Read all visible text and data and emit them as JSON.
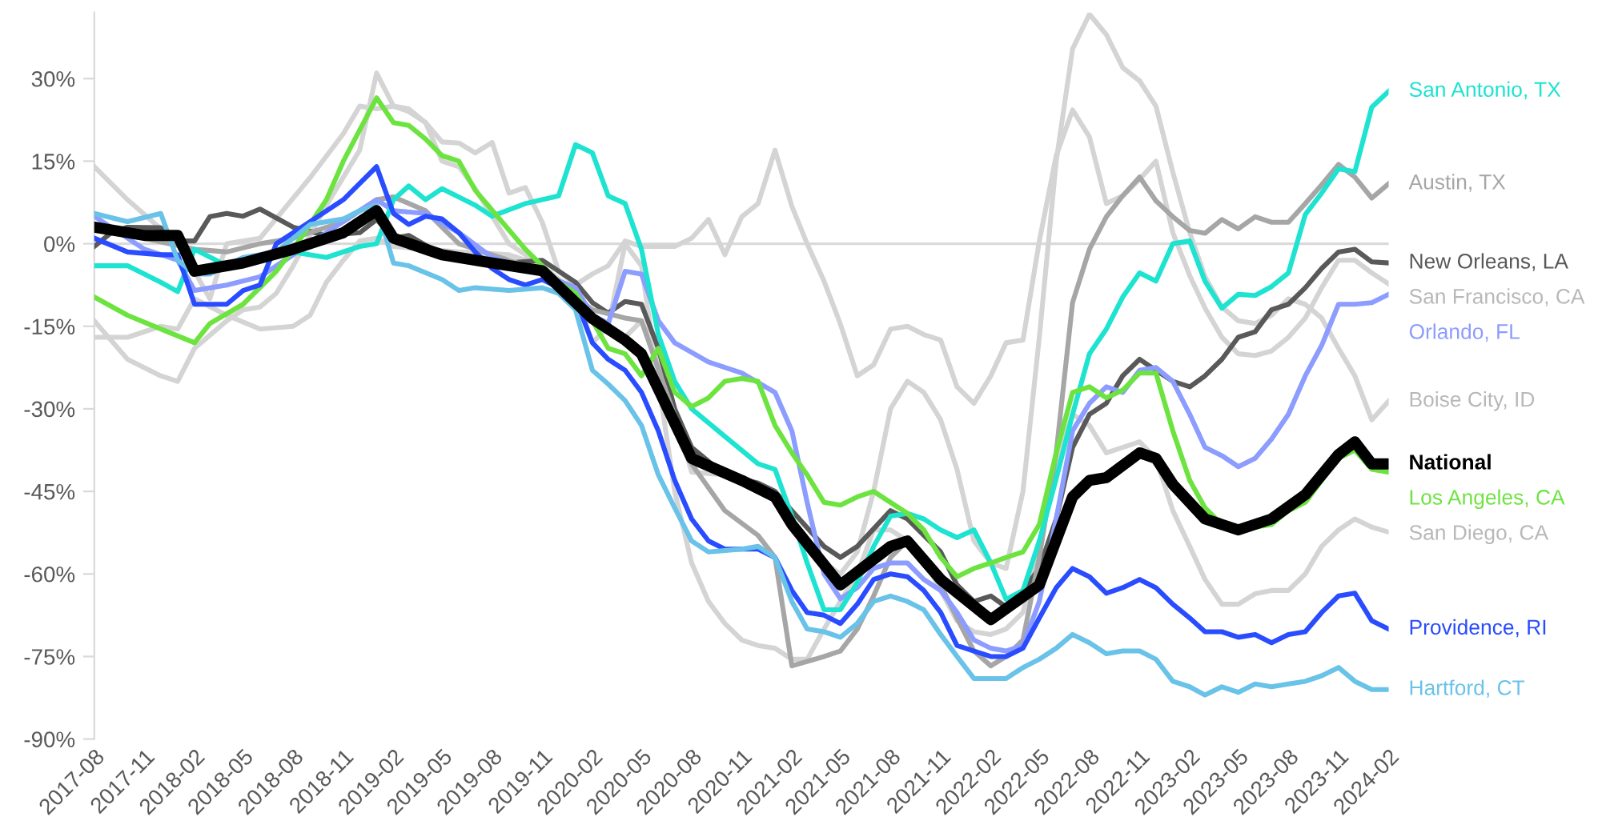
{
  "chart_data": {
    "type": "line",
    "xlim": [
      "2017-08",
      "2024-02"
    ],
    "xticks": [
      "2017-08",
      "2017-11",
      "2018-02",
      "2018-05",
      "2018-08",
      "2018-11",
      "2019-02",
      "2019-05",
      "2019-08",
      "2019-11",
      "2020-02",
      "2020-05",
      "2020-08",
      "2020-11",
      "2021-02",
      "2021-05",
      "2021-08",
      "2021-11",
      "2022-02",
      "2022-05",
      "2022-08",
      "2022-11",
      "2023-02",
      "2023-05",
      "2023-08",
      "2023-11",
      "2024-02"
    ],
    "ylim": [
      -90,
      42
    ],
    "yticks": [
      {
        "value": -90,
        "label": "-90%"
      },
      {
        "value": -75,
        "label": "-75%"
      },
      {
        "value": -60,
        "label": "-60%"
      },
      {
        "value": -45,
        "label": "-45%"
      },
      {
        "value": -30,
        "label": "-30%"
      },
      {
        "value": -15,
        "label": "-15%"
      },
      {
        "value": 0,
        "label": "0%"
      },
      {
        "value": 15,
        "label": "15%"
      },
      {
        "value": 30,
        "label": "30%"
      }
    ],
    "ref_lines": [
      {
        "axis": "y",
        "value": 0,
        "color": "#d9d9d9"
      }
    ],
    "grid": false,
    "legend": false,
    "marker": "none",
    "line_style": "solid",
    "series": [
      {
        "name": "San Francisco, CA",
        "color": "#d4d4d4",
        "x": [
          "2017-08",
          "2017-10",
          "2018-01",
          "2018-02",
          "2018-03",
          "2018-04",
          "2018-06",
          "2018-09",
          "2018-11",
          "2018-12",
          "2019-01",
          "2019-02",
          "2019-03",
          "2019-04",
          "2019-05",
          "2019-06",
          "2019-07",
          "2019-08",
          "2019-09",
          "2019-10",
          "2019-11",
          "2019-12",
          "2020-01",
          "2020-02",
          "2020-03",
          "2020-04",
          "2020-05",
          "2020-07",
          "2020-08",
          "2020-09",
          "2020-10",
          "2020-11",
          "2020-12",
          "2021-01",
          "2021-02",
          "2021-03",
          "2021-04",
          "2021-05",
          "2021-06",
          "2021-07",
          "2021-08",
          "2021-09",
          "2021-10",
          "2021-11",
          "2021-12",
          "2022-01",
          "2022-02",
          "2022-03",
          "2022-04",
          "2022-05",
          "2022-06",
          "2022-07",
          "2022-08",
          "2022-09",
          "2022-10",
          "2022-11",
          "2022-12",
          "2023-01",
          "2023-02",
          "2023-03",
          "2023-04",
          "2023-05",
          "2023-06",
          "2023-07",
          "2023-08",
          "2023-09",
          "2023-10",
          "2023-11",
          "2023-12",
          "2024-01",
          "2024-02"
        ],
        "values": [
          14,
          8,
          0,
          -5,
          -10,
          0,
          1,
          12,
          20,
          25,
          24.5,
          25,
          24.5,
          22,
          18.5,
          18.3,
          16.5,
          18.4,
          9.2,
          10.2,
          3.9,
          -5,
          -7.5,
          -5.5,
          -4,
          0.5,
          -0.5,
          -0.5,
          1,
          4.4,
          -2,
          4.9,
          7.3,
          17,
          6.8,
          0,
          -6.8,
          -14.6,
          -24,
          -22,
          -15.5,
          -15,
          -16.5,
          -17.5,
          -26,
          -29,
          -24,
          -18,
          -17.5,
          0.5,
          16,
          24.3,
          19.4,
          7.3,
          8.7,
          11.7,
          15,
          2,
          -5.8,
          -11.7,
          -17,
          -20,
          -20.3,
          -19.5,
          -17,
          -13.5,
          -8,
          -3,
          -3,
          -5.3,
          -7.3
        ]
      },
      {
        "name": "Boise City, ID",
        "color": "#d4d4d4",
        "x": [
          "2017-08",
          "2017-10",
          "2017-12",
          "2018-01",
          "2018-02",
          "2018-04",
          "2018-05",
          "2018-06",
          "2018-07",
          "2018-08",
          "2018-10",
          "2018-12",
          "2019-01",
          "2019-02",
          "2019-03",
          "2019-04",
          "2019-05",
          "2019-06",
          "2019-07",
          "2019-08",
          "2019-09",
          "2019-10",
          "2019-12",
          "2020-02",
          "2020-04",
          "2020-05",
          "2020-06",
          "2020-08",
          "2020-10",
          "2021-01",
          "2021-03",
          "2021-04",
          "2021-05",
          "2021-06",
          "2021-07",
          "2021-08",
          "2021-09",
          "2021-10",
          "2021-11",
          "2021-12",
          "2022-01",
          "2022-02",
          "2022-03",
          "2022-04",
          "2022-05",
          "2022-06",
          "2022-07",
          "2022-08",
          "2022-09",
          "2022-10",
          "2022-11",
          "2022-12",
          "2023-01",
          "2023-02",
          "2023-03",
          "2023-04",
          "2023-05",
          "2023-06",
          "2023-07",
          "2023-08",
          "2023-09",
          "2023-10",
          "2023-11",
          "2023-12",
          "2024-01",
          "2024-02"
        ],
        "values": [
          -14,
          -21,
          -24,
          -25,
          -19,
          -14,
          -12,
          -11.5,
          -9,
          -4,
          7,
          17,
          31,
          25,
          24,
          22,
          15,
          14,
          10,
          5,
          0,
          -2,
          -7,
          -13,
          -17,
          -14,
          -20,
          -41.5,
          -42,
          -45,
          -55,
          -58,
          -60,
          -56,
          -45,
          -30,
          -25,
          -27,
          -32,
          -41,
          -54,
          -58,
          -59,
          -45,
          -17,
          15,
          35.4,
          41.7,
          38,
          32,
          29.6,
          25,
          13,
          2,
          -6,
          -11.5,
          -14,
          -14.5,
          -13,
          -10,
          -11,
          -13.5,
          -19,
          -24,
          -32,
          -28.6
        ]
      },
      {
        "name": "San Diego, CA",
        "color": "#d4d4d4",
        "x": [
          "2017-08",
          "2017-10",
          "2017-12",
          "2018-01",
          "2018-02",
          "2018-04",
          "2018-06",
          "2018-08",
          "2018-09",
          "2018-10",
          "2018-11",
          "2018-12",
          "2019-01",
          "2019-02",
          "2019-06",
          "2019-09",
          "2019-11",
          "2020-01",
          "2020-02",
          "2020-03",
          "2020-04",
          "2020-05",
          "2020-06",
          "2020-07",
          "2020-08",
          "2020-09",
          "2020-10",
          "2020-11",
          "2020-12",
          "2021-01",
          "2021-02",
          "2021-03",
          "2021-04",
          "2021-05",
          "2021-06",
          "2021-07",
          "2021-08",
          "2021-09",
          "2021-10",
          "2021-11",
          "2021-12",
          "2022-01",
          "2022-02",
          "2022-03",
          "2022-04",
          "2022-05",
          "2022-06",
          "2022-07",
          "2022-08",
          "2022-09",
          "2022-10",
          "2022-11",
          "2022-12",
          "2023-01",
          "2023-02",
          "2023-03",
          "2023-04",
          "2023-05",
          "2023-06",
          "2023-07",
          "2023-08",
          "2023-09",
          "2023-10",
          "2023-11",
          "2023-12",
          "2024-01",
          "2024-02"
        ],
        "values": [
          -17,
          -17,
          -15,
          -15.5,
          -10,
          -13,
          -15.5,
          -15,
          -13,
          -7,
          -3,
          0.5,
          1,
          -0.5,
          -1.5,
          -2,
          -4,
          -9,
          -18,
          -15,
          0,
          -4,
          -25,
          -45,
          -58,
          -65,
          -69,
          -72,
          -73,
          -73.5,
          -75.5,
          -75.5,
          -70,
          -65,
          -60,
          -52,
          -52,
          -54,
          -57,
          -63,
          -68.5,
          -70.5,
          -71,
          -70,
          -67,
          -55,
          -40,
          -31,
          -33,
          -38,
          -37,
          -36,
          -39,
          -48.5,
          -55,
          -61,
          -65.5,
          -65.5,
          -63.6,
          -63,
          -63,
          -60,
          -55,
          -52,
          -50,
          -51.5,
          -52.4
        ]
      },
      {
        "name": "New Orleans, LA",
        "color": "#595959",
        "x": [
          "2017-08",
          "2017-09",
          "2017-10",
          "2017-12",
          "2018-01",
          "2018-02",
          "2018-03",
          "2018-04",
          "2018-05",
          "2018-06",
          "2018-08",
          "2018-10",
          "2018-12",
          "2019-01",
          "2019-02",
          "2019-03",
          "2019-05",
          "2019-07",
          "2019-09",
          "2019-11",
          "2020-01",
          "2020-02",
          "2020-03",
          "2020-04",
          "2020-05",
          "2020-06",
          "2020-07",
          "2020-08",
          "2020-10",
          "2020-12",
          "2021-01",
          "2021-02",
          "2021-04",
          "2021-05",
          "2021-06",
          "2021-08",
          "2021-09",
          "2021-11",
          "2021-12",
          "2022-01",
          "2022-02",
          "2022-03",
          "2022-04",
          "2022-05",
          "2022-06",
          "2022-07",
          "2022-08",
          "2022-09",
          "2022-10",
          "2022-11",
          "2022-12",
          "2023-01",
          "2023-02",
          "2023-03",
          "2023-04",
          "2023-05",
          "2023-06",
          "2023-07",
          "2023-08",
          "2023-09",
          "2023-10",
          "2023-11",
          "2023-12",
          "2024-01",
          "2024-02"
        ],
        "values": [
          -0.5,
          2,
          3,
          2.9,
          0.5,
          0.5,
          4.9,
          5.5,
          5,
          6.3,
          3,
          1.5,
          2,
          4.4,
          1,
          1.5,
          -2,
          -3.5,
          -3.5,
          -3,
          -7,
          -10.7,
          -12.6,
          -10.5,
          -11,
          -19,
          -30,
          -37,
          -42,
          -43.5,
          -45,
          -48.5,
          -55,
          -57,
          -55,
          -48.5,
          -50,
          -56,
          -62,
          -65,
          -64,
          -66,
          -63,
          -59,
          -50,
          -37,
          -31,
          -29,
          -24,
          -21,
          -23,
          -25,
          -26,
          -24,
          -21,
          -17,
          -16,
          -12,
          -11,
          -8,
          -4.5,
          -1.5,
          -1,
          -3.3,
          -3.5
        ]
      },
      {
        "name": "Austin, TX",
        "color": "#a6a6a6",
        "x": [
          "2017-08",
          "2017-11",
          "2018-02",
          "2018-04",
          "2018-06",
          "2018-08",
          "2018-11",
          "2019-01",
          "2019-02",
          "2019-04",
          "2019-05",
          "2019-06",
          "2019-08",
          "2019-11",
          "2020-02",
          "2020-04",
          "2020-05",
          "2020-08",
          "2020-10",
          "2020-12",
          "2021-01",
          "2021-02",
          "2021-04",
          "2021-05",
          "2021-06",
          "2021-07",
          "2021-08",
          "2021-09",
          "2021-10",
          "2021-11",
          "2021-12",
          "2022-01",
          "2022-02",
          "2022-03",
          "2022-04",
          "2022-05",
          "2022-06",
          "2022-07",
          "2022-08",
          "2022-09",
          "2022-10",
          "2022-11",
          "2022-12",
          "2023-01",
          "2023-02",
          "2023-03",
          "2023-04",
          "2023-05",
          "2023-06",
          "2023-07",
          "2023-08",
          "2023-09",
          "2023-10",
          "2023-11",
          "2023-12",
          "2024-01",
          "2024-02"
        ],
        "values": [
          3,
          1,
          -1,
          -1.5,
          0,
          1,
          4,
          8,
          8.5,
          6,
          3,
          0,
          -2,
          -5,
          -12,
          -13.5,
          -14,
          -40,
          -48.5,
          -53,
          -57,
          -76.7,
          -75,
          -74,
          -70,
          -64,
          -57,
          -54,
          -57,
          -62,
          -68,
          -74,
          -76.7,
          -75,
          -72,
          -57,
          -38,
          -10.7,
          -1,
          4.9,
          8.7,
          12.1,
          7.8,
          4.9,
          2.4,
          1.9,
          4.4,
          2.7,
          4.9,
          3.9,
          3.9,
          7.3,
          10.7,
          14.4,
          12.1,
          8.3,
          10.9
        ]
      },
      {
        "name": "Orlando, FL",
        "color": "#8c9cff",
        "x": [
          "2017-08",
          "2017-11",
          "2018-01",
          "2018-02",
          "2018-04",
          "2018-06",
          "2018-08",
          "2018-10",
          "2018-12",
          "2019-01",
          "2019-02",
          "2019-04",
          "2019-06",
          "2019-08",
          "2019-11",
          "2020-01",
          "2020-02",
          "2020-03",
          "2020-04",
          "2020-05",
          "2020-06",
          "2020-07",
          "2020-09",
          "2020-11",
          "2021-01",
          "2021-02",
          "2021-03",
          "2021-04",
          "2021-05",
          "2021-06",
          "2021-07",
          "2021-08",
          "2021-09",
          "2021-10",
          "2021-11",
          "2021-12",
          "2022-01",
          "2022-02",
          "2022-03",
          "2022-04",
          "2022-05",
          "2022-06",
          "2022-07",
          "2022-08",
          "2022-09",
          "2022-10",
          "2022-11",
          "2022-12",
          "2023-01",
          "2023-02",
          "2023-03",
          "2023-04",
          "2023-05",
          "2023-06",
          "2023-07",
          "2023-08",
          "2023-09",
          "2023-10",
          "2023-11",
          "2023-12",
          "2024-01",
          "2024-02"
        ],
        "values": [
          5,
          -1,
          -3,
          -8.5,
          -7.5,
          -6,
          -2,
          2,
          6,
          8,
          6,
          5.5,
          2,
          -2.5,
          -5.5,
          -8,
          -13,
          -14.5,
          -5,
          -5.5,
          -14,
          -18,
          -21.5,
          -23.5,
          -27,
          -34,
          -47,
          -60,
          -64.5,
          -62.5,
          -59,
          -58,
          -58,
          -61,
          -63,
          -67,
          -72,
          -73.5,
          -74,
          -73,
          -65,
          -50,
          -34,
          -29,
          -26,
          -27,
          -23,
          -22.5,
          -25,
          -31,
          -37,
          -38.5,
          -40.5,
          -39,
          -35.5,
          -31,
          -24,
          -18.5,
          -11,
          -11,
          -10.7,
          -9.2
        ]
      },
      {
        "name": "San Antonio, TX",
        "color": "#1de3d0",
        "x": [
          "2017-08",
          "2017-10",
          "2017-12",
          "2018-01",
          "2018-02",
          "2018-04",
          "2018-06",
          "2018-08",
          "2018-10",
          "2018-12",
          "2019-01",
          "2019-02",
          "2019-03",
          "2019-04",
          "2019-05",
          "2019-07",
          "2019-08",
          "2019-10",
          "2019-12",
          "2020-01",
          "2020-02",
          "2020-03",
          "2020-04",
          "2020-05",
          "2020-06",
          "2020-07",
          "2020-08",
          "2020-10",
          "2020-12",
          "2021-01",
          "2021-02",
          "2021-03",
          "2021-04",
          "2021-05",
          "2021-06",
          "2021-07",
          "2021-08",
          "2021-09",
          "2021-10",
          "2021-11",
          "2021-12",
          "2022-01",
          "2022-02",
          "2022-03",
          "2022-04",
          "2022-05",
          "2022-06",
          "2022-07",
          "2022-08",
          "2022-09",
          "2022-10",
          "2022-11",
          "2022-12",
          "2023-01",
          "2023-02",
          "2023-03",
          "2023-04",
          "2023-05",
          "2023-06",
          "2023-07",
          "2023-08",
          "2023-09",
          "2023-10",
          "2023-11",
          "2023-12",
          "2024-01",
          "2024-02"
        ],
        "values": [
          -4,
          -4,
          -7,
          -8.7,
          -1,
          -4,
          -3,
          -1.5,
          -2.5,
          -0.5,
          0,
          8,
          10.5,
          8,
          10,
          7,
          5,
          7.3,
          8.7,
          18,
          16.5,
          8.7,
          7.3,
          -1,
          -16.5,
          -25,
          -30,
          -35,
          -40,
          -41,
          -49.5,
          -58,
          -66.5,
          -66.5,
          -61.6,
          -55,
          -49.5,
          -49,
          -50,
          -52,
          -53.4,
          -52,
          -58,
          -64.6,
          -63,
          -54,
          -42.7,
          -31,
          -20,
          -15.5,
          -9.7,
          -5.3,
          -6.8,
          0,
          0.5,
          -6.8,
          -11.7,
          -9.2,
          -9.4,
          -7.8,
          -5.3,
          5.3,
          9.2,
          13.6,
          13.1,
          24.8,
          27.7
        ]
      },
      {
        "name": "Los Angeles, CA",
        "color": "#6de340",
        "x": [
          "2017-08",
          "2017-10",
          "2017-12",
          "2018-02",
          "2018-03",
          "2018-05",
          "2018-07",
          "2018-08",
          "2018-10",
          "2018-11",
          "2019-01",
          "2019-02",
          "2019-03",
          "2019-04",
          "2019-05",
          "2019-06",
          "2019-07",
          "2019-10",
          "2019-12",
          "2020-01",
          "2020-02",
          "2020-03",
          "2020-04",
          "2020-05",
          "2020-06",
          "2020-07",
          "2020-08",
          "2020-09",
          "2020-10",
          "2020-11",
          "2020-12",
          "2021-01",
          "2021-02",
          "2021-03",
          "2021-04",
          "2021-05",
          "2021-06",
          "2021-07",
          "2021-08",
          "2021-09",
          "2021-10",
          "2021-11",
          "2021-12",
          "2022-01",
          "2022-02",
          "2022-03",
          "2022-04",
          "2022-05",
          "2022-06",
          "2022-07",
          "2022-08",
          "2022-09",
          "2022-10",
          "2022-11",
          "2022-12",
          "2023-01",
          "2023-02",
          "2023-03",
          "2023-04",
          "2023-05",
          "2023-06",
          "2023-07",
          "2023-08",
          "2023-09",
          "2023-10",
          "2023-11",
          "2023-12",
          "2024-01",
          "2024-02"
        ],
        "values": [
          -9.7,
          -13,
          -15.5,
          -18,
          -14.5,
          -11,
          -5,
          -1,
          8,
          15,
          26.5,
          22,
          21.5,
          19,
          16,
          15,
          9.7,
          -1,
          -7,
          -9,
          -14,
          -19,
          -20,
          -24,
          -19,
          -27,
          -29.6,
          -28,
          -25,
          -24.5,
          -25,
          -33,
          -38,
          -42,
          -47,
          -47.5,
          -46,
          -45,
          -47,
          -49,
          -52,
          -57,
          -60.5,
          -59,
          -58,
          -57,
          -56,
          -51,
          -38,
          -27,
          -26,
          -28,
          -26.6,
          -23.5,
          -23.5,
          -34,
          -43,
          -48,
          -51,
          -52,
          -51.5,
          -51,
          -48.5,
          -47,
          -43,
          -39,
          -37.5,
          -41,
          -41.5
        ]
      },
      {
        "name": "Providence, RI",
        "color": "#2a4cff",
        "x": [
          "2017-08",
          "2017-10",
          "2017-12",
          "2018-01",
          "2018-02",
          "2018-04",
          "2018-05",
          "2018-06",
          "2018-07",
          "2018-09",
          "2018-11",
          "2019-01",
          "2019-02",
          "2019-03",
          "2019-04",
          "2019-05",
          "2019-06",
          "2019-07",
          "2019-08",
          "2019-09",
          "2019-10",
          "2019-11",
          "2019-12",
          "2020-01",
          "2020-02",
          "2020-03",
          "2020-04",
          "2020-05",
          "2020-06",
          "2020-07",
          "2020-08",
          "2020-09",
          "2020-10",
          "2020-12",
          "2021-01",
          "2021-02",
          "2021-03",
          "2021-04",
          "2021-05",
          "2021-06",
          "2021-07",
          "2021-08",
          "2021-09",
          "2021-10",
          "2021-11",
          "2021-12",
          "2022-01",
          "2022-02",
          "2022-03",
          "2022-04",
          "2022-05",
          "2022-06",
          "2022-07",
          "2022-08",
          "2022-09",
          "2022-10",
          "2022-11",
          "2022-12",
          "2023-01",
          "2023-02",
          "2023-03",
          "2023-04",
          "2023-05",
          "2023-06",
          "2023-07",
          "2023-08",
          "2023-09",
          "2023-10",
          "2023-11",
          "2023-12",
          "2024-01",
          "2024-02"
        ],
        "values": [
          1,
          -1.5,
          -2,
          -2,
          -11,
          -11,
          -8.5,
          -7.5,
          0,
          4,
          8,
          14,
          5.5,
          3.5,
          5,
          4.5,
          2,
          -1.5,
          -4.5,
          -6.5,
          -7.5,
          -6.5,
          -8,
          -10,
          -18,
          -21,
          -23,
          -27,
          -34,
          -43,
          -50,
          -54,
          -55.5,
          -55.5,
          -57,
          -63,
          -67,
          -67.5,
          -69,
          -65.5,
          -61,
          -60,
          -60.5,
          -63,
          -67,
          -73,
          -74,
          -75,
          -75,
          -73.5,
          -68,
          -62.5,
          -59,
          -60.5,
          -63.5,
          -62.5,
          -61,
          -62.5,
          -65.5,
          -68,
          -70.5,
          -70.5,
          -71.5,
          -71,
          -72.5,
          -71,
          -70.5,
          -67,
          -64,
          -63.5,
          -68.5,
          -70
        ]
      },
      {
        "name": "Hartford, CT",
        "color": "#69c2e8",
        "x": [
          "2017-08",
          "2017-10",
          "2017-12",
          "2018-01",
          "2018-02",
          "2018-03",
          "2018-05",
          "2018-07",
          "2018-09",
          "2018-11",
          "2018-12",
          "2019-01",
          "2019-02",
          "2019-03",
          "2019-05",
          "2019-06",
          "2019-07",
          "2019-09",
          "2019-11",
          "2019-12",
          "2020-01",
          "2020-02",
          "2020-03",
          "2020-04",
          "2020-05",
          "2020-06",
          "2020-07",
          "2020-08",
          "2020-09",
          "2020-11",
          "2020-12",
          "2021-01",
          "2021-02",
          "2021-03",
          "2021-04",
          "2021-05",
          "2021-06",
          "2021-07",
          "2021-08",
          "2021-09",
          "2021-10",
          "2021-11",
          "2021-12",
          "2022-01",
          "2022-02",
          "2022-03",
          "2022-04",
          "2022-05",
          "2022-06",
          "2022-07",
          "2022-08",
          "2022-09",
          "2022-10",
          "2022-11",
          "2022-12",
          "2023-01",
          "2023-02",
          "2023-03",
          "2023-04",
          "2023-05",
          "2023-06",
          "2023-07",
          "2023-08",
          "2023-09",
          "2023-10",
          "2023-11",
          "2023-12",
          "2024-01",
          "2024-02"
        ],
        "values": [
          5.5,
          4,
          5.5,
          -3,
          -5.5,
          -5.5,
          -2.5,
          -1.5,
          3.5,
          4.5,
          6,
          7,
          -3.5,
          -4,
          -6.5,
          -8.5,
          -8,
          -8.5,
          -8,
          -9,
          -12,
          -23,
          -25.5,
          -28.5,
          -33,
          -42,
          -48,
          -54,
          -56,
          -55.5,
          -55,
          -57,
          -65,
          -70,
          -70.5,
          -71.5,
          -69,
          -65,
          -64,
          -65,
          -66.5,
          -71,
          -75,
          -79,
          -79,
          -79,
          -77,
          -75.5,
          -73.5,
          -71,
          -72.5,
          -74.5,
          -74,
          -74,
          -75.5,
          -79.5,
          -80.5,
          -82,
          -80.5,
          -81.5,
          -80,
          -80.5,
          -80,
          -79.5,
          -78.5,
          -77,
          -79.5,
          -81,
          -81
        ]
      },
      {
        "name": "National",
        "color": "#000000",
        "x": [
          "2017-08",
          "2017-11",
          "2018-01",
          "2018-02",
          "2018-05",
          "2018-08",
          "2018-11",
          "2019-01",
          "2019-02",
          "2019-05",
          "2019-08",
          "2019-11",
          "2020-02",
          "2020-04",
          "2020-05",
          "2020-08",
          "2020-11",
          "2021-01",
          "2021-02",
          "2021-05",
          "2021-08",
          "2021-09",
          "2021-11",
          "2022-02",
          "2022-05",
          "2022-07",
          "2022-08",
          "2022-09",
          "2022-11",
          "2022-12",
          "2023-01",
          "2023-03",
          "2023-05",
          "2023-07",
          "2023-09",
          "2023-11",
          "2023-12",
          "2024-01",
          "2024-02"
        ],
        "values": [
          3,
          1.5,
          1.5,
          -5,
          -3.5,
          -1,
          2,
          6,
          1,
          -2,
          -3.5,
          -4.9,
          -13.6,
          -17.5,
          -20,
          -39,
          -43,
          -46,
          -51,
          -62,
          -55,
          -54,
          -61,
          -68.3,
          -62,
          -46,
          -43,
          -42.5,
          -38,
          -39,
          -43.7,
          -50,
          -52,
          -50,
          -45.6,
          -38.3,
          -36,
          -40,
          -40
        ]
      }
    ]
  }
}
